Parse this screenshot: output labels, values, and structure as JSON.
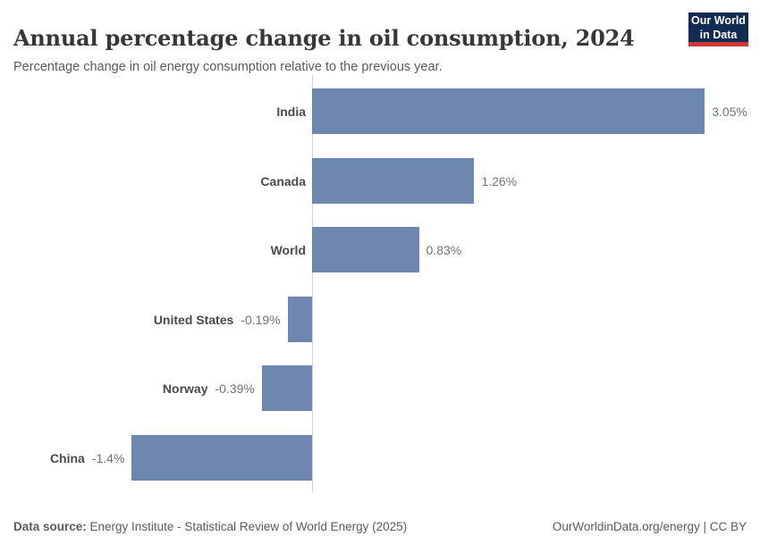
{
  "header": {
    "title": "Annual percentage change in oil consumption, 2024",
    "subtitle": "Percentage change in oil energy consumption relative to the previous year.",
    "logo": {
      "line1": "Our World",
      "line2": "in Data"
    }
  },
  "chart_data": {
    "type": "bar",
    "orientation": "horizontal",
    "title": "Annual percentage change in oil consumption, 2024",
    "xlabel": "",
    "ylabel": "",
    "categories": [
      "India",
      "Canada",
      "World",
      "United States",
      "Norway",
      "China"
    ],
    "values": [
      3.05,
      1.26,
      0.83,
      -0.19,
      -0.39,
      -1.4
    ],
    "value_labels": [
      "3.05%",
      "1.26%",
      "0.83%",
      "-0.19%",
      "-0.39%",
      "-1.4%"
    ],
    "unit": "%",
    "xlim": [
      -1.4,
      3.05
    ],
    "grid": false,
    "legend": "none",
    "bar_color": "#6e87b1",
    "axis_color": "#d4d4d4",
    "category_label_color": "#4a4a4a",
    "value_label_color": "#737373"
  },
  "footer": {
    "datasource_label": "Data source:",
    "datasource_text": " Energy Institute - Statistical Review of World Energy (2025)",
    "right_text": "OurWorldinData.org/energy | CC BY"
  },
  "colors": {
    "logo_background": "#122b52",
    "logo_accent": "#cd3731",
    "title_color": "#383636",
    "text_color": "#5b5b5b"
  }
}
